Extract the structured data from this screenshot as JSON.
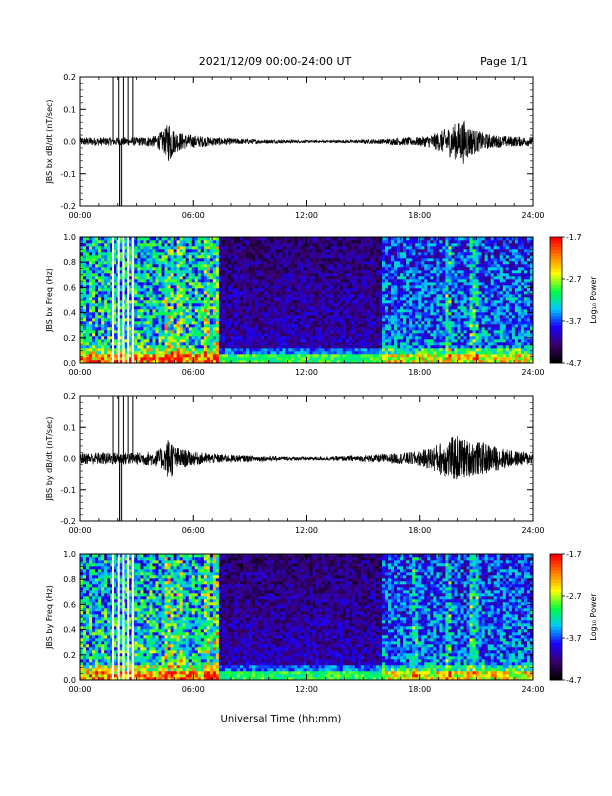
{
  "header": {
    "date_range": "2021/12/09  00:00-24:00 UT",
    "page": "Page 1/1"
  },
  "x_axis": {
    "label": "Universal Time (hh:mm)",
    "range_hours": [
      0,
      24
    ],
    "ticks": [
      {
        "h": 0,
        "label": "00:00"
      },
      {
        "h": 6,
        "label": "06:00"
      },
      {
        "h": 12,
        "label": "12:00"
      },
      {
        "h": 18,
        "label": "18:00"
      },
      {
        "h": 24,
        "label": "24:00"
      }
    ]
  },
  "colorbar": {
    "label": "Log₁₀ Power",
    "range": [
      -4.7,
      -1.7
    ],
    "ticks": [
      "-1.7",
      "-2.7",
      "-3.7",
      "-4.7"
    ],
    "colors": [
      "#000000",
      "#3a0070",
      "#1a00ff",
      "#00c8ff",
      "#00ff40",
      "#ffff00",
      "#ff8000",
      "#ff0000"
    ]
  },
  "chart_data": [
    {
      "type": "line",
      "ylabel": "JBS bx dB/dt (nT/sec)",
      "ylim": [
        -0.2,
        0.2
      ],
      "yticks": [
        {
          "v": 0.2,
          "label": "0.2"
        },
        {
          "v": 0.1,
          "label": "0.1"
        },
        {
          "v": 0.0,
          "label": "0.0"
        },
        {
          "v": -0.1,
          "label": "-0.1"
        },
        {
          "v": -0.2,
          "label": "-0.2"
        }
      ],
      "series": [
        {
          "envelope": {
            "x": [
              0,
              1,
              1.9,
              2.3,
              3,
              4,
              4.5,
              4.75,
              5,
              5.5,
              6,
              7,
              8,
              9,
              10,
              11,
              12,
              13,
              14,
              15,
              16,
              17,
              18,
              18.5,
              19,
              19.5,
              20,
              20.3,
              20.6,
              21,
              21.5,
              22,
              23,
              24
            ],
            "amplitude": [
              0.013,
              0.013,
              0.013,
              0.013,
              0.013,
              0.018,
              0.04,
              0.07,
              0.035,
              0.025,
              0.02,
              0.014,
              0.01,
              0.008,
              0.006,
              0.005,
              0.004,
              0.004,
              0.005,
              0.006,
              0.008,
              0.012,
              0.014,
              0.02,
              0.03,
              0.045,
              0.06,
              0.07,
              0.05,
              0.035,
              0.025,
              0.02,
              0.016,
              0.014
            ]
          },
          "spikes_x": [
            1.75,
            2.05,
            2.3,
            2.55,
            2.8
          ],
          "deep_spike_x": 2.1
        }
      ]
    },
    {
      "type": "heatmap",
      "ylabel": "JBS bx Freq (Hz)",
      "ylim": [
        0,
        1.0
      ],
      "yticks": [
        {
          "v": 1.0,
          "label": "1.0"
        },
        {
          "v": 0.8,
          "label": "0.8"
        },
        {
          "v": 0.6,
          "label": "0.6"
        },
        {
          "v": 0.4,
          "label": "0.4"
        },
        {
          "v": 0.2,
          "label": "0.2"
        },
        {
          "v": 0.0,
          "label": "0.0"
        }
      ],
      "gaps_x": [
        1.75,
        2.05,
        2.3,
        2.55,
        2.8
      ],
      "bright_bands_x": [
        4.7,
        5.3,
        6.7,
        7.2,
        19.5,
        20.9
      ],
      "quiet_start_h": 7.3,
      "quiet_end_h": 16
    },
    {
      "type": "line",
      "ylabel": "JBS by dB/dt (nT/sec)",
      "ylim": [
        -0.2,
        0.2
      ],
      "yticks": [
        {
          "v": 0.2,
          "label": "0.2"
        },
        {
          "v": 0.1,
          "label": "0.1"
        },
        {
          "v": 0.0,
          "label": "0.0"
        },
        {
          "v": -0.1,
          "label": "-0.1"
        },
        {
          "v": -0.2,
          "label": "-0.2"
        }
      ],
      "series": [
        {
          "envelope": {
            "x": [
              0,
              1,
              2,
              3,
              4,
              4.5,
              4.75,
              5,
              5.5,
              6,
              7,
              8,
              9,
              10,
              11,
              12,
              13,
              14,
              15,
              16,
              17,
              18,
              18.5,
              19,
              19.5,
              20,
              20.5,
              21,
              21.5,
              22,
              23,
              24
            ],
            "amplitude": [
              0.018,
              0.02,
              0.02,
              0.02,
              0.025,
              0.04,
              0.08,
              0.04,
              0.03,
              0.022,
              0.016,
              0.012,
              0.01,
              0.008,
              0.006,
              0.006,
              0.006,
              0.008,
              0.01,
              0.014,
              0.018,
              0.025,
              0.035,
              0.05,
              0.065,
              0.075,
              0.06,
              0.055,
              0.05,
              0.04,
              0.025,
              0.02
            ]
          },
          "spikes_x": [
            1.75,
            2.05,
            2.3,
            2.55,
            2.8
          ],
          "deep_spike_x": 2.1
        }
      ]
    },
    {
      "type": "heatmap",
      "ylabel": "JBS by Freq (Hz)",
      "ylim": [
        0,
        1.0
      ],
      "yticks": [
        {
          "v": 1.0,
          "label": "1.0"
        },
        {
          "v": 0.8,
          "label": "0.8"
        },
        {
          "v": 0.6,
          "label": "0.6"
        },
        {
          "v": 0.4,
          "label": "0.4"
        },
        {
          "v": 0.2,
          "label": "0.2"
        },
        {
          "v": 0.0,
          "label": "0.0"
        }
      ],
      "gaps_x": [
        1.75,
        2.05,
        2.3,
        2.55,
        2.8
      ],
      "bright_bands_x": [
        4.7,
        5.3,
        6.7,
        7.2,
        17.8,
        19.5,
        20.9
      ],
      "quiet_start_h": 7.3,
      "quiet_end_h": 16
    }
  ]
}
